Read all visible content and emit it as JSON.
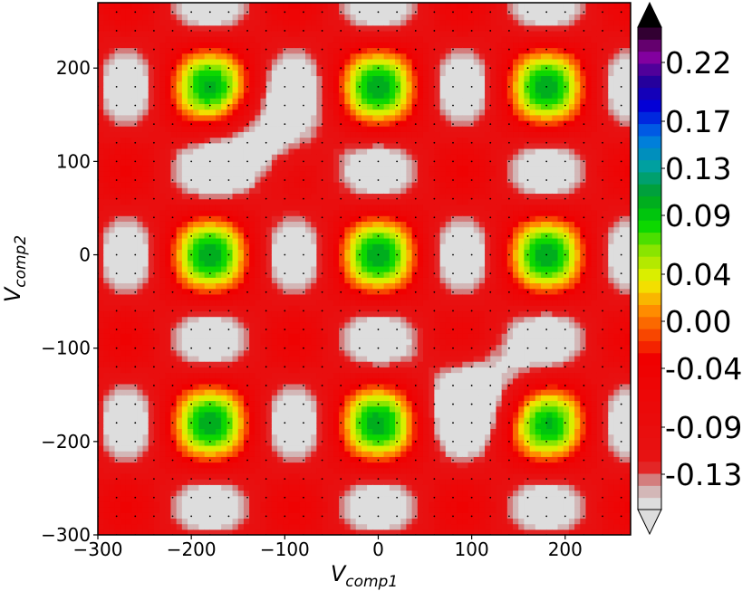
{
  "chart_data": {
    "type": "heatmap",
    "title": "",
    "xlabel_base": "V",
    "xlabel_sub": "comp1",
    "ylabel_base": "V",
    "ylabel_sub": "comp2",
    "xlim": [
      -300,
      270
    ],
    "ylim": [
      -300,
      270
    ],
    "xticks": [
      -300,
      -200,
      -100,
      0,
      100,
      200
    ],
    "yticks": [
      -300,
      -200,
      -100,
      0,
      100,
      200
    ],
    "xtick_labels": [
      "−300",
      "−200",
      "−100",
      "0",
      "100",
      "200"
    ],
    "ytick_labels": [
      "−300",
      "−200",
      "−100",
      "0",
      "100",
      "200"
    ],
    "colorbar": {
      "range": [
        -0.16,
        0.25
      ],
      "ticks": [
        0.22,
        0.17,
        0.13,
        0.09,
        0.04,
        0.0,
        -0.04,
        -0.09,
        -0.13
      ],
      "tick_labels": [
        "0.22",
        "0.17",
        "0.13",
        "0.09",
        "0.04",
        "0.00",
        "-0.04",
        "-0.09",
        "-0.13"
      ],
      "extend": "both",
      "colormap": "nipy_spectral_r"
    },
    "minima": [
      {
        "x": -120,
        "y": 120,
        "value": -0.16
      },
      {
        "x": 110,
        "y": -140,
        "value": -0.16
      }
    ],
    "grid_points": "dots every 20 units",
    "colors": {
      "lowest": "#dddddd",
      "low": "#e60000",
      "mid": "#00e000",
      "high": "#0000d0",
      "highest": "#000000"
    }
  }
}
